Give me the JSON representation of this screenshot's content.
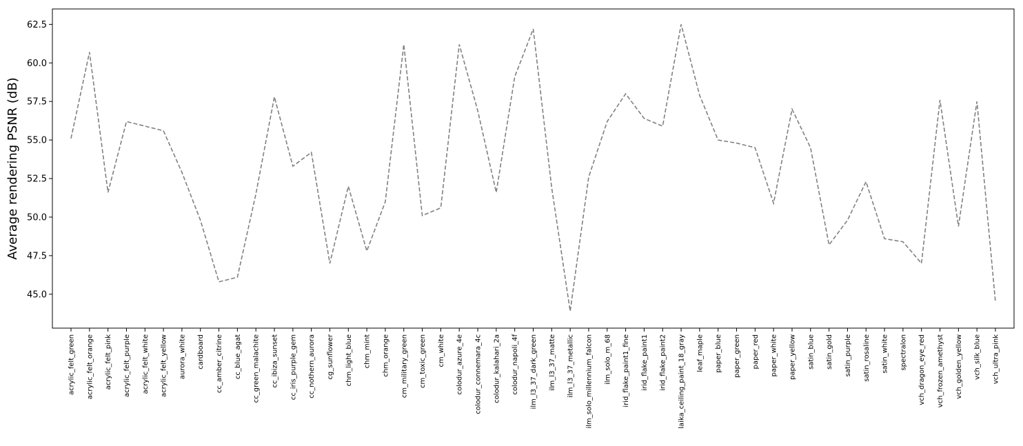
{
  "chart_data": {
    "type": "line",
    "title": "",
    "xlabel": "",
    "ylabel": "Average rendering PSNR (dB)",
    "ylim": [
      42.8,
      63.5
    ],
    "yticks": [
      "45.0",
      "47.5",
      "50.0",
      "52.5",
      "55.0",
      "57.5",
      "60.0",
      "62.5"
    ],
    "grid": false,
    "legend": "none",
    "line_color": "#808080",
    "line_style": "dashed",
    "categories": [
      "acrylic_felt_green",
      "acrylic_felt_orange",
      "acrylic_felt_pink",
      "acrylic_felt_purple",
      "acrylic_felt_white",
      "acrylic_felt_yellow",
      "aurora_white",
      "cardboard",
      "cc_amber_citrine",
      "cc_blue_agat",
      "cc_green_malachite",
      "cc_ibiza_sunset",
      "cc_iris_purple_gem",
      "cc_nothern_aurora",
      "cg_sunflower",
      "chm_light_blue",
      "chm_mint",
      "chm_orange",
      "cm_military_green",
      "cm_toxic_green",
      "cm_white",
      "colodur_azure_4e",
      "colodur_connemara_4c",
      "colodur_kalahari_2a",
      "colodur_napoli_4f",
      "ilm_l3_37_dark_green",
      "ilm_l3_37_matte",
      "ilm_l3_37_metallic",
      "ilm_solo_millennium_falcon",
      "ilm_solo_m_68",
      "irid_flake_paint1_fine",
      "irid_flake_paint1",
      "irid_flake_paint2",
      "laika_ceiling_paint_18_gray",
      "leaf_maple",
      "paper_blue",
      "paper_green",
      "paper_red",
      "paper_white",
      "paper_yellow",
      "satin_blue",
      "satin_gold",
      "satin_purple",
      "satin_rosaline",
      "satin_white",
      "spectralon",
      "vch_dragon_eye_red",
      "vch_frozen_amethyst",
      "vch_golden_yellow",
      "vch_silk_blue",
      "vch_ultra_pink"
    ],
    "values": [
      55.1,
      60.7,
      51.6,
      56.2,
      55.9,
      55.6,
      52.9,
      49.8,
      45.8,
      46.1,
      51.5,
      57.8,
      53.3,
      54.2,
      47.0,
      52.0,
      47.8,
      51.0,
      61.2,
      50.1,
      50.6,
      61.2,
      56.9,
      51.6,
      59.1,
      62.2,
      51.9,
      43.9,
      52.6,
      56.2,
      58.0,
      56.4,
      55.9,
      62.5,
      57.9,
      55.0,
      54.8,
      54.5,
      50.9,
      57.0,
      54.5,
      48.2,
      49.8,
      52.3,
      48.6,
      48.4,
      47.0,
      57.6,
      49.4,
      57.5,
      44.5
    ]
  }
}
